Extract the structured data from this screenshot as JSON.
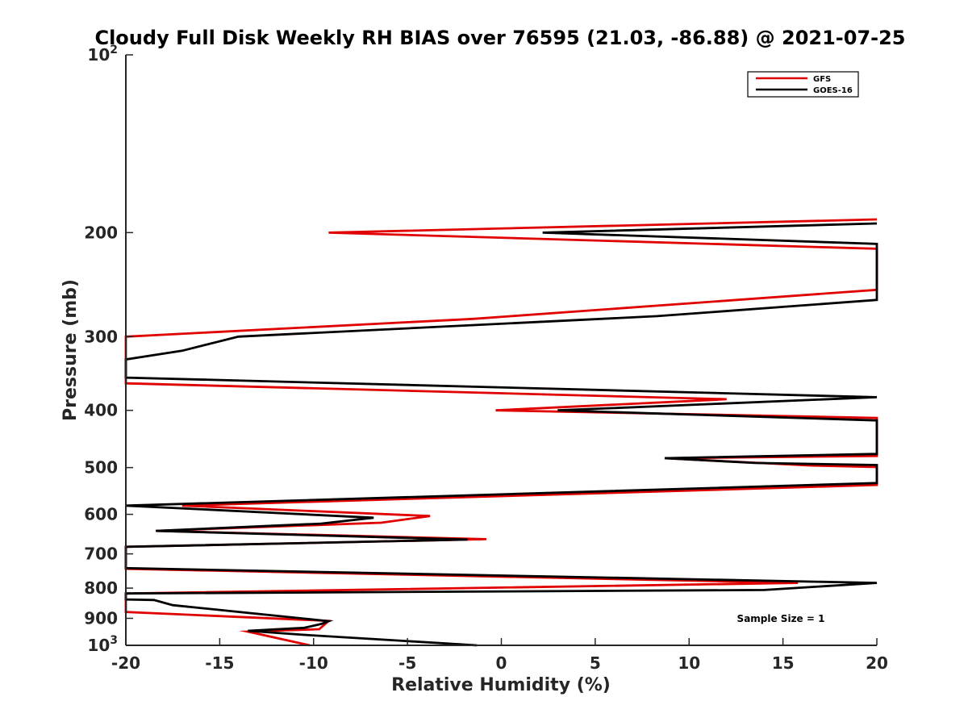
{
  "chart_data": {
    "type": "line",
    "title": "Cloudy Full Disk Weekly RH BIAS over 76595 (21.03, -86.88) @ 2021-07-25",
    "xlabel": "Relative Humidity (%)",
    "ylabel": "Pressure (mb)",
    "xlim": [
      -20,
      20
    ],
    "ylim": [
      100,
      1000
    ],
    "yscale": "log",
    "y_reversed": true,
    "xticks": [
      -20,
      -15,
      -10,
      -5,
      0,
      5,
      10,
      15,
      20
    ],
    "yticks": [
      {
        "value": 100,
        "label": "10",
        "exp": "2"
      },
      {
        "value": 200,
        "label": "200"
      },
      {
        "value": 300,
        "label": "300"
      },
      {
        "value": 400,
        "label": "400"
      },
      {
        "value": 500,
        "label": "500"
      },
      {
        "value": 600,
        "label": "600"
      },
      {
        "value": 700,
        "label": "700"
      },
      {
        "value": 800,
        "label": "800"
      },
      {
        "value": 900,
        "label": "900"
      },
      {
        "value": 1000,
        "label": "10",
        "exp": "3"
      }
    ],
    "legend_position": "top-right",
    "annotation": "Sample Size = 1",
    "series": [
      {
        "name": "GFS",
        "color": "#e00000",
        "points": [
          [
            20,
            190
          ],
          [
            -9.2,
            200
          ],
          [
            20,
            213
          ],
          [
            20,
            250
          ],
          [
            -1.5,
            280
          ],
          [
            -20,
            300
          ],
          [
            -20,
            360
          ],
          [
            12,
            383
          ],
          [
            -0.3,
            400
          ],
          [
            20,
            412
          ],
          [
            20,
            478
          ],
          [
            8.7,
            482
          ],
          [
            16.5,
            496
          ],
          [
            20,
            499
          ],
          [
            20,
            535
          ],
          [
            -17,
            580
          ],
          [
            -3.8,
            604
          ],
          [
            -6.4,
            620
          ],
          [
            -18.4,
            640
          ],
          [
            -0.8,
            661
          ],
          [
            -20,
            681
          ],
          [
            -20,
            742
          ],
          [
            15.8,
            784
          ],
          [
            -20,
            817
          ],
          [
            -20,
            878
          ],
          [
            -9.2,
            909
          ],
          [
            -9.7,
            939
          ],
          [
            -13.5,
            948
          ],
          [
            -10.2,
            1000
          ]
        ]
      },
      {
        "name": "GOES-16",
        "color": "#000000",
        "points": [
          [
            20,
            193
          ],
          [
            2.2,
            200
          ],
          [
            20,
            209
          ],
          [
            20,
            260
          ],
          [
            8.3,
            277
          ],
          [
            -14,
            300
          ],
          [
            -17,
            317
          ],
          [
            -20,
            328
          ],
          [
            -20,
            352
          ],
          [
            20,
            380
          ],
          [
            3,
            400
          ],
          [
            20,
            416
          ],
          [
            20,
            474
          ],
          [
            8.7,
            482
          ],
          [
            13.5,
            491
          ],
          [
            20,
            495
          ],
          [
            20,
            531
          ],
          [
            -20,
            580
          ],
          [
            -6.8,
            608
          ],
          [
            -9.6,
            622
          ],
          [
            -18.4,
            640
          ],
          [
            -1.8,
            662
          ],
          [
            -20,
            681
          ],
          [
            -20,
            740
          ],
          [
            20,
            784
          ],
          [
            14,
            806
          ],
          [
            -20,
            817
          ],
          [
            -20,
            836
          ],
          [
            -18.5,
            838
          ],
          [
            -17.5,
            855
          ],
          [
            -9.2,
            910
          ],
          [
            -9.6,
            920
          ],
          [
            -10.5,
            934
          ],
          [
            -13.5,
            945
          ],
          [
            -10.5,
            960
          ],
          [
            -1.3,
            1000
          ]
        ]
      }
    ]
  }
}
